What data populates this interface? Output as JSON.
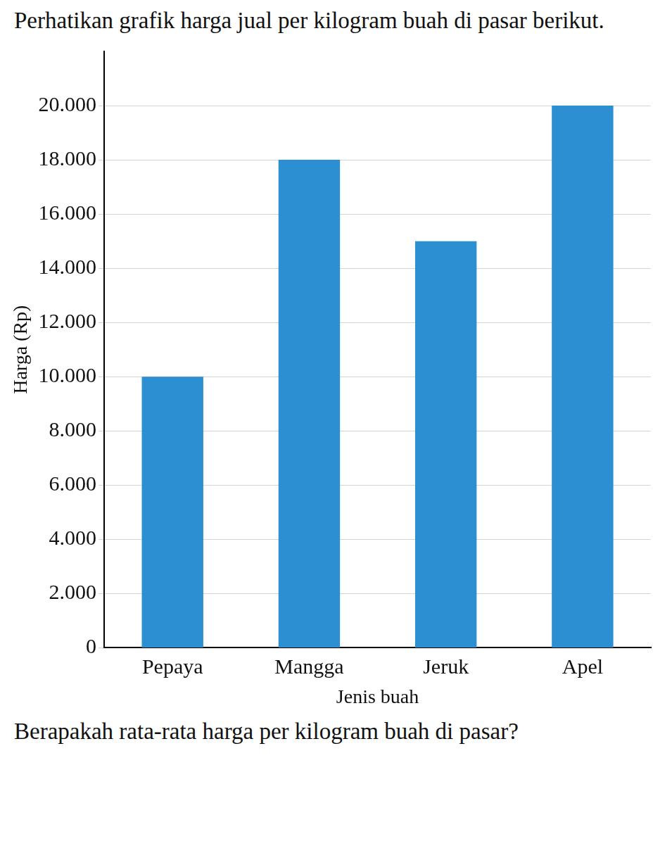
{
  "intro": "Perhatikan grafik harga jual per kilogram buah di pasar berikut.",
  "chart_data": {
    "type": "bar",
    "x_label": "Jenis buah",
    "y_label": "Harga (Rp)",
    "categories": [
      "Pepaya",
      "Mangga",
      "Jeruk",
      "Apel"
    ],
    "values": [
      10000,
      18000,
      15000,
      20000
    ],
    "color": "#2b8fd1",
    "ylim": [
      0,
      22000
    ],
    "yticks": [
      0,
      {
        "value": 2000,
        "label": "2.000"
      },
      {
        "value": 4000,
        "label": "4.000"
      },
      {
        "value": 6000,
        "label": "6.000"
      },
      {
        "value": 8000,
        "label": "8.000"
      },
      {
        "value": 10000,
        "label": "10.000"
      },
      {
        "value": 12000,
        "label": "12.000"
      },
      {
        "value": 14000,
        "label": "14.000"
      },
      {
        "value": 16000,
        "label": "16.000"
      },
      {
        "value": 18000,
        "label": "18.000"
      },
      {
        "value": 20000,
        "label": "20.000"
      }
    ],
    "grid": true
  },
  "question": "Berapakah rata-rata harga per kilogram buah di pasar?"
}
